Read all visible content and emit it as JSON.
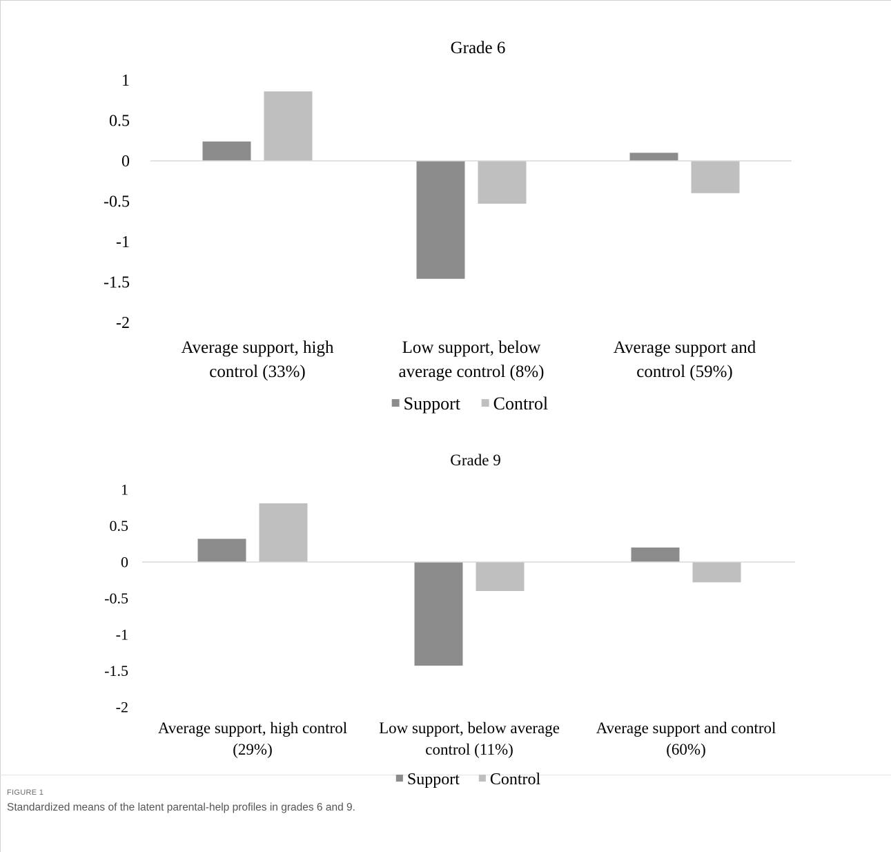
{
  "chart_data": [
    {
      "type": "bar",
      "title": "Grade 6",
      "categories": [
        [
          "Average support, high",
          "control (33%)"
        ],
        [
          "Low support, below",
          "average control (8%)"
        ],
        [
          "Average support and",
          "control (59%)"
        ]
      ],
      "series": [
        {
          "name": "Support",
          "values": [
            0.24,
            -1.46,
            0.1
          ],
          "color": "#8c8c8c"
        },
        {
          "name": "Control",
          "values": [
            0.86,
            -0.53,
            -0.4
          ],
          "color": "#bfbfbf"
        }
      ],
      "yticks": [
        "1",
        "0.5",
        "0",
        "-0.5",
        "-1",
        "-1.5",
        "-2"
      ],
      "ylim": [
        -2,
        1
      ],
      "legend": "bottom-center",
      "grid": false
    },
    {
      "type": "bar",
      "title": "Grade 9",
      "categories": [
        [
          "Average support, high control",
          "(29%)"
        ],
        [
          "Low support, below average",
          "control (11%)"
        ],
        [
          "Average support and control",
          "(60%)"
        ]
      ],
      "series": [
        {
          "name": "Support",
          "values": [
            0.32,
            -1.43,
            0.2
          ],
          "color": "#8c8c8c"
        },
        {
          "name": "Control",
          "values": [
            0.81,
            -0.4,
            -0.28
          ],
          "color": "#bfbfbf"
        }
      ],
      "yticks": [
        "1",
        "0.5",
        "0",
        "-0.5",
        "-1",
        "-1.5",
        "-2"
      ],
      "ylim": [
        -2,
        1
      ],
      "legend": "bottom-center",
      "grid": false
    }
  ],
  "caption": {
    "label": "FIGURE 1",
    "text": "Standardized means of the latent parental-help profiles in grades 6 and 9."
  }
}
